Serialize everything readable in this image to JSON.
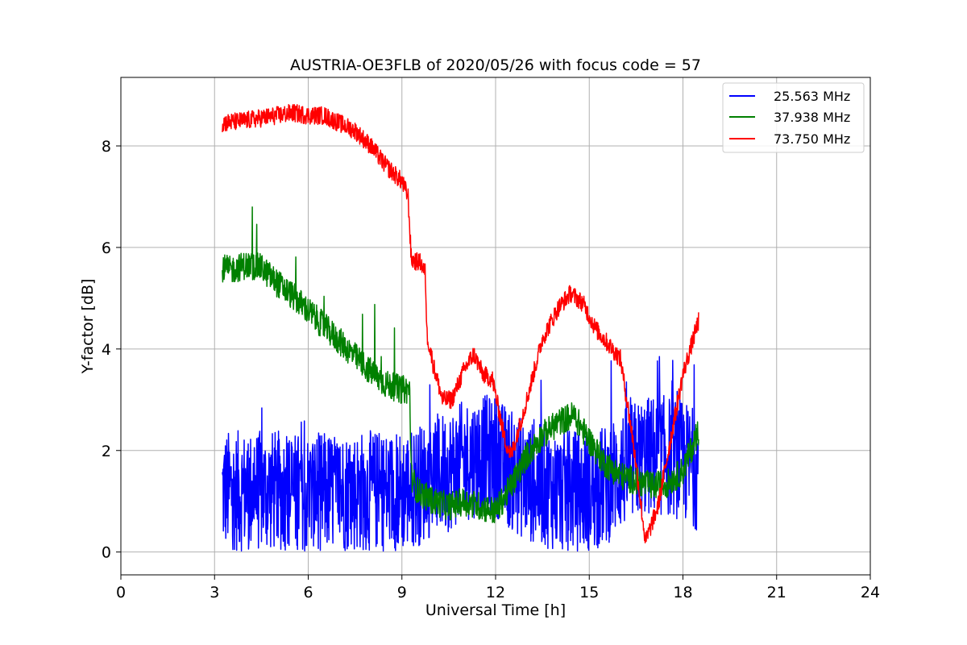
{
  "chart_data": {
    "type": "line",
    "title": "AUSTRIA-OE3FLB of 2020/05/26 with focus code = 57",
    "xlabel": "Universal Time [h]",
    "ylabel": "Y-factor [dB]",
    "xlim": [
      0,
      24
    ],
    "ylim": [
      -0.45,
      9.35
    ],
    "xticks": [
      0,
      3,
      6,
      9,
      12,
      15,
      18,
      21,
      24
    ],
    "xtick_labels": [
      "0",
      "3",
      "6",
      "9",
      "12",
      "15",
      "18",
      "21",
      "24"
    ],
    "yticks": [
      0,
      2,
      4,
      6,
      8
    ],
    "ytick_labels": [
      "0",
      "2",
      "4",
      "6",
      "8"
    ],
    "grid": true,
    "legend_position": "top-right",
    "series": [
      {
        "name": "25.563 MHz",
        "color": "#0000ff",
        "x": [
          3.25,
          4,
          5,
          6,
          7,
          8,
          9,
          9.5,
          10,
          10.5,
          11,
          11.5,
          12,
          12.5,
          13,
          13.5,
          14,
          14.5,
          15,
          15.5,
          16,
          16.5,
          17,
          17.5,
          18,
          18.5
        ],
        "y": [
          1.2,
          1.2,
          1.2,
          1.15,
          1.2,
          1.2,
          1.2,
          1.3,
          1.5,
          1.6,
          1.8,
          1.9,
          1.9,
          1.6,
          1.4,
          1.3,
          1.2,
          1.2,
          1.2,
          1.3,
          1.6,
          1.8,
          1.9,
          1.9,
          1.8,
          1.6
        ],
        "band": 1.2
      },
      {
        "name": "37.938 MHz",
        "color": "#008000",
        "x": [
          3.25,
          3.5,
          4,
          4.5,
          5,
          5.5,
          6,
          6.5,
          7,
          7.5,
          8,
          8.5,
          9,
          9.25,
          9.3,
          9.5,
          10,
          10.5,
          11,
          11.5,
          12,
          12.5,
          13,
          13.5,
          14,
          14.5,
          15,
          15.5,
          16,
          16.5,
          17,
          17.5,
          18,
          18.5
        ],
        "y": [
          5.6,
          5.55,
          5.65,
          5.6,
          5.3,
          5.05,
          4.75,
          4.45,
          4.15,
          3.85,
          3.55,
          3.3,
          3.2,
          3.2,
          1.5,
          1.2,
          1.0,
          0.9,
          1.0,
          0.9,
          0.8,
          1.3,
          1.9,
          2.3,
          2.55,
          2.7,
          2.2,
          1.75,
          1.5,
          1.4,
          1.3,
          1.35,
          1.6,
          2.4
        ],
        "band": 0.28
      },
      {
        "name": "73.750 MHz",
        "color": "#ff0000",
        "x": [
          3.25,
          4,
          5,
          5.5,
          6,
          6.5,
          7,
          7.5,
          8,
          8.5,
          9,
          9.2,
          9.3,
          9.6,
          9.75,
          9.8,
          10,
          10.3,
          10.6,
          11,
          11.3,
          11.6,
          11.9,
          12.3,
          12.5,
          13,
          13.5,
          14,
          14.4,
          14.8,
          15.2,
          15.6,
          16,
          16.4,
          16.8,
          17.2,
          17.6,
          18,
          18.5
        ],
        "y": [
          8.45,
          8.5,
          8.6,
          8.65,
          8.6,
          8.6,
          8.45,
          8.3,
          8.0,
          7.6,
          7.3,
          7.0,
          5.75,
          5.7,
          5.5,
          4.3,
          3.7,
          3.0,
          3.0,
          3.6,
          3.9,
          3.5,
          3.4,
          2.2,
          1.9,
          3.0,
          4.2,
          4.8,
          5.1,
          4.9,
          4.4,
          4.1,
          3.8,
          2.2,
          0.2,
          0.9,
          2.2,
          3.5,
          4.55
        ],
        "band": 0.18
      }
    ]
  }
}
